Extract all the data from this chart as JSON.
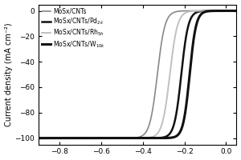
{
  "title": "",
  "xlabel": "",
  "ylabel": "Current density (mA cm⁻²)",
  "xlim": [
    -0.9,
    0.05
  ],
  "ylim": [
    -105,
    5
  ],
  "xticks": [
    -0.8,
    -0.6,
    -0.4,
    -0.2,
    0.0
  ],
  "yticks": [
    -100,
    -80,
    -60,
    -40,
    -20,
    0
  ],
  "series": [
    {
      "label": "MoSx/CNTs",
      "color": "#888888",
      "linewidth": 1.2,
      "onset": -0.33,
      "steepness": 55,
      "order": 1
    },
    {
      "label": "MoSx/CNTs/Pd$_{2k}$",
      "color": "#111111",
      "linewidth": 1.8,
      "onset": -0.215,
      "steepness": 60,
      "order": 2
    },
    {
      "label": "MoSx/CNTs/Rh$_{5h}$",
      "color": "#c0c0c0",
      "linewidth": 1.4,
      "onset": -0.27,
      "steepness": 55,
      "order": 3
    },
    {
      "label": "MoSx/CNTs/W$_{10k}$",
      "color": "#111111",
      "linewidth": 2.2,
      "onset": -0.175,
      "steepness": 65,
      "order": 4
    }
  ],
  "background_color": "#ffffff",
  "legend_fontsize": 5.5,
  "axis_fontsize": 7,
  "tick_fontsize": 6.5
}
